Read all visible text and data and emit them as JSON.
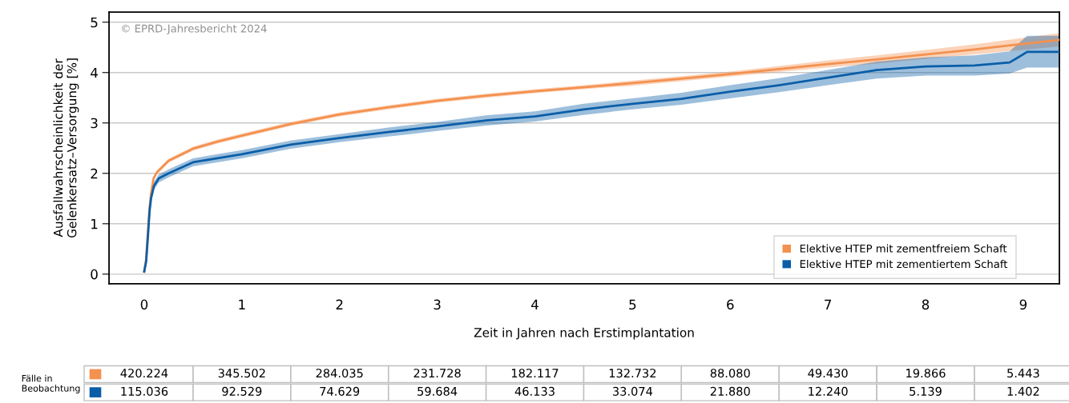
{
  "chart_data": {
    "type": "line",
    "xlabel": "Zeit in Jahren nach Erstimplantation",
    "ylabel": "Ausfallwahrscheinlichkeit der\nGelenkersatz–Versorgung [%]",
    "xlim": [
      -0.36,
      9.37
    ],
    "ylim": [
      -0.19,
      5.2
    ],
    "xticks": [
      0,
      1,
      2,
      3,
      4,
      5,
      6,
      7,
      8,
      9
    ],
    "yticks": [
      0,
      1,
      2,
      3,
      4,
      5
    ],
    "grid": "y",
    "legend": "bottom right",
    "series": [
      {
        "name": "Elektive HTEP mit zementfreiem Schaft",
        "color": "#f4914f",
        "x": [
          0,
          0.02,
          0.04,
          0.055,
          0.07,
          0.096,
          0.13,
          0.178,
          0.25,
          0.5,
          0.75,
          1,
          1.5,
          2,
          2.5,
          3,
          3.5,
          4,
          4.5,
          5,
          5.5,
          6,
          6.5,
          7,
          7.5,
          8,
          8.5,
          9,
          9.37
        ],
        "values": [
          0.05,
          0.3,
          0.9,
          1.32,
          1.6,
          1.9,
          2.02,
          2.11,
          2.25,
          2.49,
          2.63,
          2.75,
          2.98,
          3.17,
          3.31,
          3.44,
          3.54,
          3.63,
          3.71,
          3.79,
          3.88,
          3.97,
          4.07,
          4.17,
          4.26,
          4.36,
          4.46,
          4.57,
          4.65
        ],
        "lower": [
          0.04,
          0.27,
          0.86,
          1.28,
          1.56,
          1.86,
          1.98,
          2.07,
          2.21,
          2.45,
          2.59,
          2.71,
          2.94,
          3.13,
          3.27,
          3.4,
          3.5,
          3.59,
          3.67,
          3.74,
          3.83,
          3.92,
          4.01,
          4.1,
          4.18,
          4.27,
          4.36,
          4.45,
          4.52
        ],
        "upper": [
          0.06,
          0.33,
          0.94,
          1.36,
          1.64,
          1.94,
          2.06,
          2.15,
          2.29,
          2.53,
          2.67,
          2.79,
          3.02,
          3.21,
          3.35,
          3.48,
          3.58,
          3.67,
          3.75,
          3.84,
          3.93,
          4.02,
          4.13,
          4.24,
          4.34,
          4.45,
          4.56,
          4.69,
          4.78
        ]
      },
      {
        "name": "Elektive HTEP mit zementiertem Schaft",
        "color": "#0a5ea8",
        "x": [
          0,
          0.02,
          0.04,
          0.055,
          0.07,
          0.1,
          0.15,
          0.25,
          0.5,
          0.75,
          1,
          1.5,
          2,
          2.5,
          3,
          3.5,
          4,
          4.5,
          5,
          5.5,
          6,
          6.5,
          7,
          7.5,
          8,
          8.5,
          8.86,
          9.04,
          9.37
        ],
        "values": [
          0.05,
          0.25,
          0.8,
          1.25,
          1.5,
          1.75,
          1.9,
          2.0,
          2.22,
          2.3,
          2.38,
          2.57,
          2.7,
          2.82,
          2.93,
          3.05,
          3.13,
          3.27,
          3.38,
          3.48,
          3.62,
          3.75,
          3.9,
          4.05,
          4.12,
          4.14,
          4.2,
          4.41,
          4.41
        ],
        "lower": [
          0.03,
          0.21,
          0.74,
          1.18,
          1.43,
          1.67,
          1.82,
          1.92,
          2.14,
          2.22,
          2.3,
          2.49,
          2.62,
          2.73,
          2.84,
          2.95,
          3.03,
          3.16,
          3.27,
          3.36,
          3.49,
          3.61,
          3.75,
          3.88,
          3.94,
          3.94,
          3.98,
          4.1,
          4.1
        ],
        "upper": [
          0.07,
          0.29,
          0.86,
          1.32,
          1.57,
          1.83,
          1.98,
          2.08,
          2.3,
          2.38,
          2.46,
          2.65,
          2.78,
          2.91,
          3.02,
          3.15,
          3.23,
          3.38,
          3.49,
          3.6,
          3.75,
          3.89,
          4.05,
          4.22,
          4.3,
          4.34,
          4.42,
          4.73,
          4.73
        ]
      }
    ],
    "annotations": [
      "© EPRD-Jahresbericht 2024",
      "Fälle in\nBeobachtung",
      "420.224",
      "345.502",
      "284.035",
      "231.728",
      "182.117",
      "132.732",
      "88.080",
      "49.430",
      "19.866",
      "5.443",
      "115.036",
      "92.529",
      "74.629",
      "59.684",
      "46.133",
      "33.074",
      "21.880",
      "12.240",
      "5.139",
      "1.402"
    ]
  }
}
